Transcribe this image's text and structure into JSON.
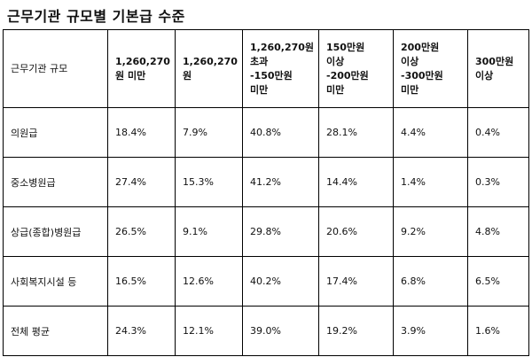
{
  "title": "근무기관 규모별 기본급 수준",
  "table": {
    "header_first": "근무기관 규모",
    "columns": [
      [
        "1,260,270",
        "원 미만"
      ],
      [
        "1,260,270",
        "원"
      ],
      [
        "1,260,270원",
        "초과",
        "-150만원",
        "미만"
      ],
      [
        "150만원",
        "이상",
        "-200만원",
        "미만"
      ],
      [
        "200만원",
        "이상",
        "-300만원",
        "미만"
      ],
      [
        "300만원",
        "이상"
      ]
    ],
    "rows": [
      {
        "label": "의원급",
        "values": [
          "18.4%",
          "7.9%",
          "40.8%",
          "28.1%",
          "4.4%",
          "0.4%"
        ]
      },
      {
        "label": "중소병원급",
        "values": [
          "27.4%",
          "15.3%",
          "41.2%",
          "14.4%",
          "1.4%",
          "0.3%"
        ]
      },
      {
        "label": "상급(종합)병원급",
        "values": [
          "26.5%",
          "9.1%",
          "29.8%",
          "20.6%",
          "9.2%",
          "4.8%"
        ]
      },
      {
        "label": "사회복지시설 등",
        "values": [
          "16.5%",
          "12.6%",
          "40.2%",
          "17.4%",
          "6.8%",
          "6.5%"
        ]
      },
      {
        "label": "전체 평균",
        "values": [
          "24.3%",
          "12.1%",
          "39.0%",
          "19.2%",
          "3.9%",
          "1.6%"
        ]
      }
    ]
  }
}
